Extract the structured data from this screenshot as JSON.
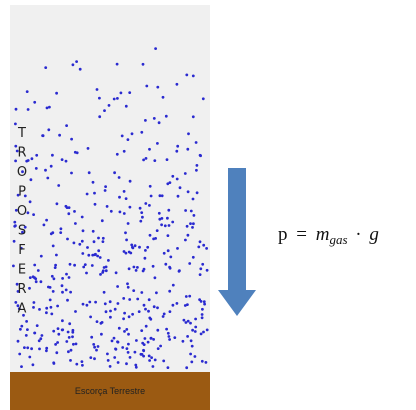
{
  "column_label": [
    "T",
    "R",
    "O",
    "P",
    "O",
    "S",
    "F",
    "E",
    "R",
    "A"
  ],
  "ground_label": "Escorça Terrestre",
  "formula": {
    "lhs": "p",
    "equals": "=",
    "mass": "m",
    "subscript": "gas",
    "dot": "·",
    "gravity": "g"
  }
}
